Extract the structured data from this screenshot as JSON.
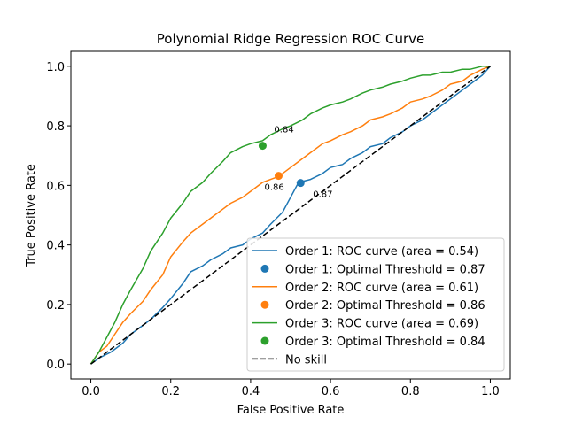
{
  "chart_data": {
    "type": "line",
    "title": "Polynomial Ridge Regression ROC Curve",
    "xlabel": "False Positive Rate",
    "ylabel": "True Positive Rate",
    "xlim": [
      -0.05,
      1.05
    ],
    "ylim": [
      -0.05,
      1.05
    ],
    "xticks": [
      "0.0",
      "0.2",
      "0.4",
      "0.6",
      "0.8",
      "1.0"
    ],
    "yticks": [
      "0.0",
      "0.2",
      "0.4",
      "0.6",
      "0.8",
      "1.0"
    ],
    "grid": false,
    "legend_position": "lower-right",
    "series": [
      {
        "name": "Order 1: ROC curve (area = 0.54)",
        "color": "#1f77b4",
        "x": [
          0.0,
          0.02,
          0.05,
          0.08,
          0.1,
          0.13,
          0.15,
          0.18,
          0.2,
          0.23,
          0.25,
          0.28,
          0.3,
          0.33,
          0.35,
          0.38,
          0.4,
          0.43,
          0.45,
          0.48,
          0.5,
          0.52,
          0.55,
          0.58,
          0.6,
          0.63,
          0.65,
          0.68,
          0.7,
          0.73,
          0.75,
          0.78,
          0.8,
          0.83,
          0.85,
          0.88,
          0.9,
          0.93,
          0.95,
          0.98,
          1.0
        ],
        "y": [
          0.0,
          0.02,
          0.04,
          0.07,
          0.1,
          0.13,
          0.15,
          0.19,
          0.22,
          0.27,
          0.31,
          0.33,
          0.35,
          0.37,
          0.39,
          0.4,
          0.42,
          0.44,
          0.47,
          0.51,
          0.56,
          0.61,
          0.62,
          0.64,
          0.66,
          0.67,
          0.69,
          0.71,
          0.73,
          0.74,
          0.76,
          0.78,
          0.8,
          0.82,
          0.84,
          0.87,
          0.89,
          0.92,
          0.94,
          0.97,
          1.0
        ]
      },
      {
        "name": "Order 2: ROC curve (area = 0.61)",
        "color": "#ff7f0e",
        "x": [
          0.0,
          0.02,
          0.04,
          0.06,
          0.08,
          0.1,
          0.13,
          0.15,
          0.18,
          0.2,
          0.23,
          0.25,
          0.28,
          0.3,
          0.33,
          0.35,
          0.38,
          0.4,
          0.43,
          0.45,
          0.47,
          0.5,
          0.52,
          0.55,
          0.58,
          0.6,
          0.63,
          0.65,
          0.68,
          0.7,
          0.73,
          0.75,
          0.78,
          0.8,
          0.83,
          0.85,
          0.88,
          0.9,
          0.93,
          0.95,
          0.98,
          1.0
        ],
        "y": [
          0.0,
          0.04,
          0.06,
          0.1,
          0.14,
          0.17,
          0.21,
          0.25,
          0.3,
          0.36,
          0.41,
          0.44,
          0.47,
          0.49,
          0.52,
          0.54,
          0.56,
          0.58,
          0.61,
          0.62,
          0.63,
          0.66,
          0.68,
          0.71,
          0.74,
          0.75,
          0.77,
          0.78,
          0.8,
          0.82,
          0.83,
          0.84,
          0.86,
          0.88,
          0.89,
          0.9,
          0.92,
          0.94,
          0.95,
          0.97,
          0.99,
          1.0
        ]
      },
      {
        "name": "Order 3: ROC curve (area = 0.69)",
        "color": "#2ca02c",
        "x": [
          0.0,
          0.02,
          0.04,
          0.06,
          0.08,
          0.1,
          0.13,
          0.15,
          0.18,
          0.2,
          0.23,
          0.25,
          0.28,
          0.3,
          0.33,
          0.35,
          0.38,
          0.4,
          0.43,
          0.45,
          0.48,
          0.5,
          0.53,
          0.55,
          0.58,
          0.6,
          0.63,
          0.65,
          0.68,
          0.7,
          0.73,
          0.75,
          0.78,
          0.8,
          0.83,
          0.85,
          0.88,
          0.9,
          0.93,
          0.95,
          0.98,
          1.0
        ],
        "y": [
          0.0,
          0.04,
          0.09,
          0.14,
          0.2,
          0.25,
          0.32,
          0.38,
          0.44,
          0.49,
          0.54,
          0.58,
          0.61,
          0.64,
          0.68,
          0.71,
          0.73,
          0.74,
          0.75,
          0.77,
          0.79,
          0.8,
          0.82,
          0.84,
          0.86,
          0.87,
          0.88,
          0.89,
          0.91,
          0.92,
          0.93,
          0.94,
          0.95,
          0.96,
          0.97,
          0.97,
          0.98,
          0.98,
          0.99,
          0.99,
          1.0,
          1.0
        ]
      }
    ],
    "optimal_points": [
      {
        "name": "Order 1: Optimal Threshold = 0.87",
        "color": "#1f77b4",
        "x": 0.525,
        "y": 0.608,
        "label": "0.87"
      },
      {
        "name": "Order 2: Optimal Threshold = 0.86",
        "color": "#ff7f0e",
        "x": 0.47,
        "y": 0.632,
        "label": "0.86"
      },
      {
        "name": "Order 3: Optimal Threshold = 0.84",
        "color": "#2ca02c",
        "x": 0.43,
        "y": 0.733,
        "label": "0.84"
      }
    ],
    "baseline": {
      "name": "No skill",
      "color": "#000000",
      "x": [
        0,
        1
      ],
      "y": [
        0,
        1
      ]
    }
  }
}
